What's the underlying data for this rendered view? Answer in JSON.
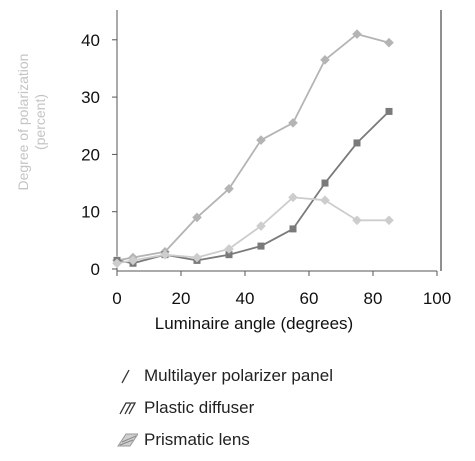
{
  "chart_data": {
    "type": "line",
    "xlabel": "Luminaire angle (degrees)",
    "ylabel_line1": "Degree of polarization",
    "ylabel_line2": "(percent)",
    "xlim": [
      0,
      100
    ],
    "ylim": [
      0,
      45
    ],
    "x_ticks": [
      "0",
      "20",
      "40",
      "60",
      "80",
      "100"
    ],
    "y_ticks": [
      "0",
      "10",
      "20",
      "30",
      "40"
    ],
    "series": [
      {
        "name": "Multilayer polarizer panel",
        "color": "#b4b4b4",
        "marker": "diamond",
        "points": [
          [
            0,
            1.5
          ],
          [
            5,
            2
          ],
          [
            15,
            3
          ],
          [
            25,
            9
          ],
          [
            35,
            14
          ],
          [
            45,
            22.5
          ],
          [
            55,
            25.5
          ],
          [
            65,
            36.5
          ],
          [
            75,
            41
          ],
          [
            85,
            39.5
          ]
        ]
      },
      {
        "name": "Plastic diffuser",
        "color": "#7a7a7a",
        "marker": "square",
        "points": [
          [
            0,
            1.5
          ],
          [
            5,
            1
          ],
          [
            15,
            2.5
          ],
          [
            25,
            1.5
          ],
          [
            35,
            2.5
          ],
          [
            45,
            4
          ],
          [
            55,
            7
          ],
          [
            65,
            15
          ],
          [
            75,
            22
          ],
          [
            85,
            27.5
          ]
        ]
      },
      {
        "name": "Prismatic lens",
        "color": "#cdcdcd",
        "marker": "diamond",
        "points": [
          [
            0,
            1
          ],
          [
            5,
            1.5
          ],
          [
            15,
            2.5
          ],
          [
            25,
            2
          ],
          [
            35,
            3.5
          ],
          [
            45,
            7.5
          ],
          [
            55,
            12.5
          ],
          [
            65,
            12
          ],
          [
            75,
            8.5
          ],
          [
            85,
            8.5
          ]
        ]
      }
    ]
  },
  "legend": [
    {
      "symbol": "/",
      "label": "Multilayer polarizer panel"
    },
    {
      "symbol": "/7",
      "label": "Plastic diffuser"
    },
    {
      "symbol": "hatch",
      "label": "Prismatic lens"
    }
  ]
}
